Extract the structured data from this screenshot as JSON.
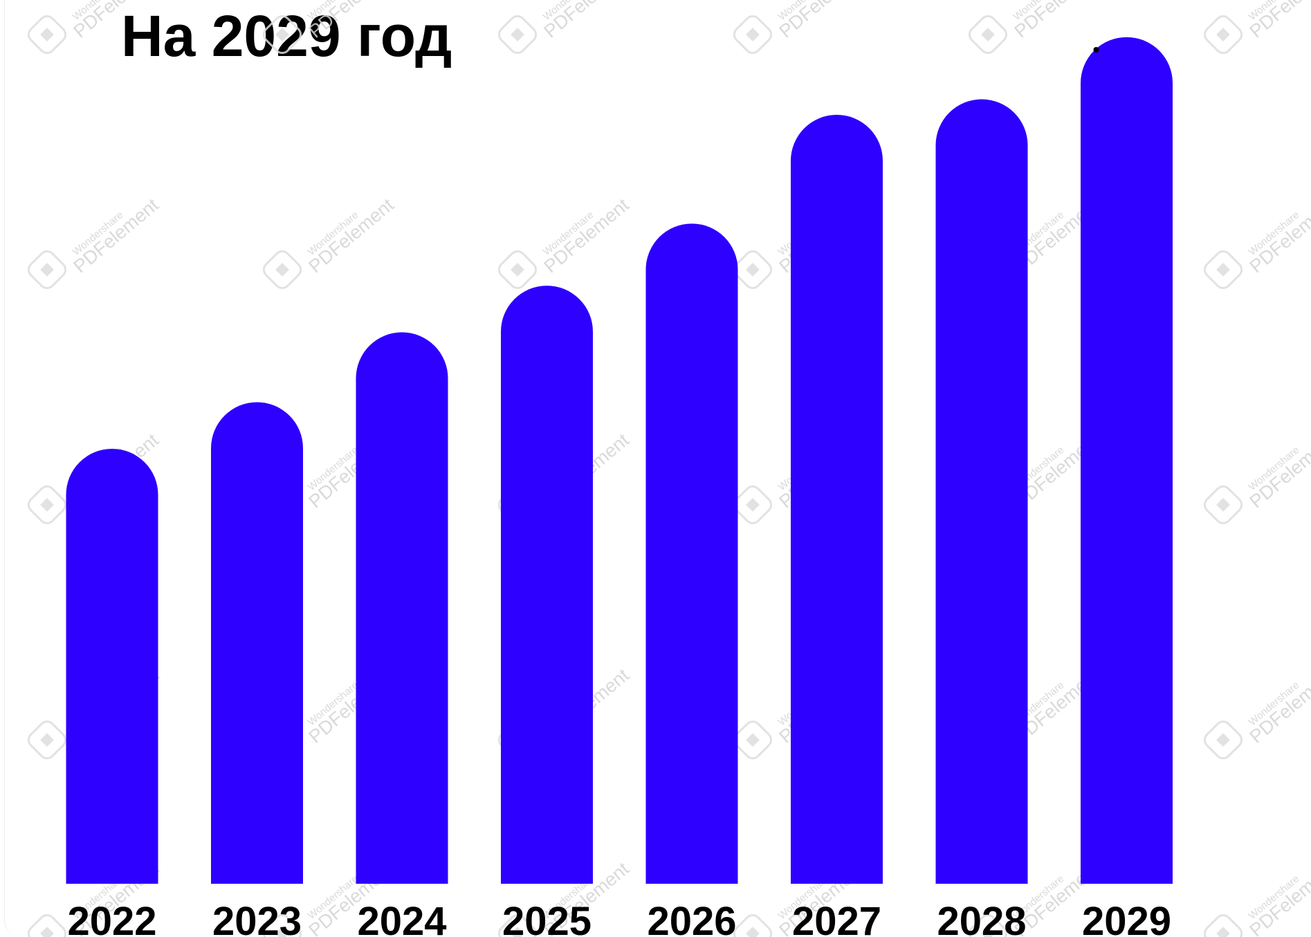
{
  "title": "На 2029 год",
  "chart_data": {
    "type": "bar",
    "title": "На 2029 год",
    "categories": [
      "2022",
      "2023",
      "2024",
      "2025",
      "2026",
      "2027",
      "2028",
      "2029"
    ],
    "values": [
      56,
      62,
      71,
      77,
      85,
      99,
      101,
      109
    ],
    "ylim": [
      0,
      112
    ],
    "grid": false,
    "legend": "none",
    "bar_color": "#2e00ff",
    "bar_shape": "rounded-top"
  },
  "watermark": {
    "brand": "Wondershare",
    "product": "PDFelement"
  }
}
